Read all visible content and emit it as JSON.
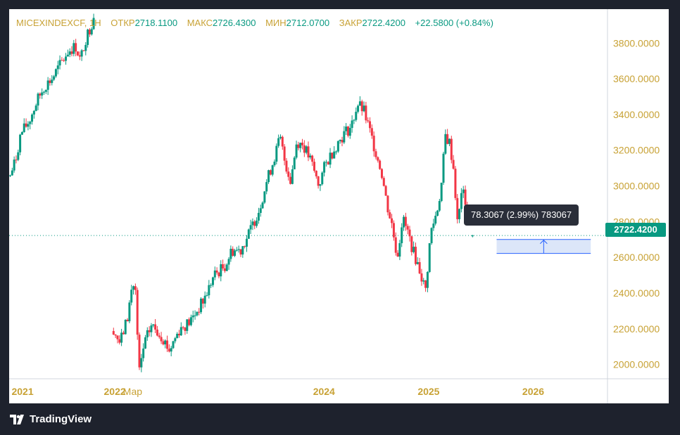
{
  "legend": {
    "symbol": "MICEXINDEXCF, 1Н",
    "open_label": "ОТКР",
    "open_value": "2718.1100",
    "high_label": "МАКС",
    "high_value": "2726.4300",
    "low_label": "МИН",
    "low_value": "2712.0700",
    "close_label": "ЗАКР",
    "close_value": "2722.4200",
    "change_value": "+22.5800 (+0.84%)"
  },
  "last_price_label": "2722.4200",
  "measure_tooltip": "78.3067 (2.99%) 783067",
  "brand": "TradingView",
  "colors": {
    "up": "#089981",
    "down": "#f23645",
    "axis_text": "#c8a235",
    "measure_fill": "#dce6f9",
    "measure_line": "#2962ff"
  },
  "chart_data": {
    "type": "candlestick",
    "title": "",
    "xlabel": "",
    "ylabel": "",
    "y_ticks": [
      "3800.0000",
      "3600.0000",
      "3400.0000",
      "3200.0000",
      "3000.0000",
      "2800.0000",
      "2600.0000",
      "2400.0000",
      "2200.0000",
      "2000.0000"
    ],
    "x_ticks": [
      {
        "label": "2021",
        "t": 2021.0
      },
      {
        "label": "2022",
        "t": 2022.0
      },
      {
        "label": "Мар",
        "t": 2022.17
      },
      {
        "label": "2024",
        "t": 2024.0
      },
      {
        "label": "2025",
        "t": 2025.0
      },
      {
        "label": "2026",
        "t": 2026.0
      }
    ],
    "ylim": [
      1920,
      3990
    ],
    "xlim": [
      2020.99,
      2026.71
    ],
    "last_price": 2722.42,
    "measure_range": {
      "from": 2622,
      "to": 2700.3,
      "t_start": 2025.65,
      "t_end": 2026.55
    },
    "series_anchors": [
      {
        "t": 2021.0,
        "v": 3060
      },
      {
        "t": 2021.05,
        "v": 3140
      },
      {
        "t": 2021.1,
        "v": 3290
      },
      {
        "t": 2021.18,
        "v": 3360
      },
      {
        "t": 2021.26,
        "v": 3480
      },
      {
        "t": 2021.33,
        "v": 3560
      },
      {
        "t": 2021.4,
        "v": 3600
      },
      {
        "t": 2021.5,
        "v": 3700
      },
      {
        "t": 2021.56,
        "v": 3760
      },
      {
        "t": 2021.63,
        "v": 3780
      },
      {
        "t": 2021.67,
        "v": 3700
      },
      {
        "t": 2021.72,
        "v": 3820
      },
      {
        "t": 2021.78,
        "v": 3910
      },
      {
        "t": 2021.8,
        "v": 3960
      },
      {
        "t": 2021.98,
        "v": 2200
      },
      {
        "t": 2022.05,
        "v": 2120
      },
      {
        "t": 2022.12,
        "v": 2260
      },
      {
        "t": 2022.17,
        "v": 2460
      },
      {
        "t": 2022.2,
        "v": 2400
      },
      {
        "t": 2022.23,
        "v": 1940
      },
      {
        "t": 2022.28,
        "v": 2110
      },
      {
        "t": 2022.35,
        "v": 2220
      },
      {
        "t": 2022.45,
        "v": 2160
      },
      {
        "t": 2022.52,
        "v": 2080
      },
      {
        "t": 2022.62,
        "v": 2200
      },
      {
        "t": 2022.72,
        "v": 2240
      },
      {
        "t": 2022.85,
        "v": 2360
      },
      {
        "t": 2022.95,
        "v": 2500
      },
      {
        "t": 2023.05,
        "v": 2550
      },
      {
        "t": 2023.12,
        "v": 2640
      },
      {
        "t": 2023.2,
        "v": 2640
      },
      {
        "t": 2023.28,
        "v": 2730
      },
      {
        "t": 2023.38,
        "v": 2870
      },
      {
        "t": 2023.45,
        "v": 3020
      },
      {
        "t": 2023.52,
        "v": 3150
      },
      {
        "t": 2023.58,
        "v": 3270
      },
      {
        "t": 2023.62,
        "v": 3150
      },
      {
        "t": 2023.68,
        "v": 3030
      },
      {
        "t": 2023.74,
        "v": 3250
      },
      {
        "t": 2023.8,
        "v": 3230
      },
      {
        "t": 2023.88,
        "v": 3130
      },
      {
        "t": 2023.95,
        "v": 3000
      },
      {
        "t": 2024.0,
        "v": 3100
      },
      {
        "t": 2024.05,
        "v": 3160
      },
      {
        "t": 2024.12,
        "v": 3230
      },
      {
        "t": 2024.2,
        "v": 3300
      },
      {
        "t": 2024.26,
        "v": 3330
      },
      {
        "t": 2024.32,
        "v": 3460
      },
      {
        "t": 2024.38,
        "v": 3420
      },
      {
        "t": 2024.44,
        "v": 3300
      },
      {
        "t": 2024.5,
        "v": 3180
      },
      {
        "t": 2024.55,
        "v": 3080
      },
      {
        "t": 2024.6,
        "v": 2900
      },
      {
        "t": 2024.65,
        "v": 2780
      },
      {
        "t": 2024.7,
        "v": 2600
      },
      {
        "t": 2024.75,
        "v": 2820
      },
      {
        "t": 2024.8,
        "v": 2740
      },
      {
        "t": 2024.86,
        "v": 2620
      },
      {
        "t": 2024.92,
        "v": 2520
      },
      {
        "t": 2024.97,
        "v": 2410
      },
      {
        "t": 2025.02,
        "v": 2740
      },
      {
        "t": 2025.08,
        "v": 2860
      },
      {
        "t": 2025.12,
        "v": 2990
      },
      {
        "t": 2025.16,
        "v": 3280
      },
      {
        "t": 2025.2,
        "v": 3240
      },
      {
        "t": 2025.24,
        "v": 3090
      },
      {
        "t": 2025.28,
        "v": 2750
      },
      {
        "t": 2025.31,
        "v": 2980
      },
      {
        "t": 2025.35,
        "v": 2920
      },
      {
        "t": 2025.4,
        "v": 2720
      }
    ]
  }
}
